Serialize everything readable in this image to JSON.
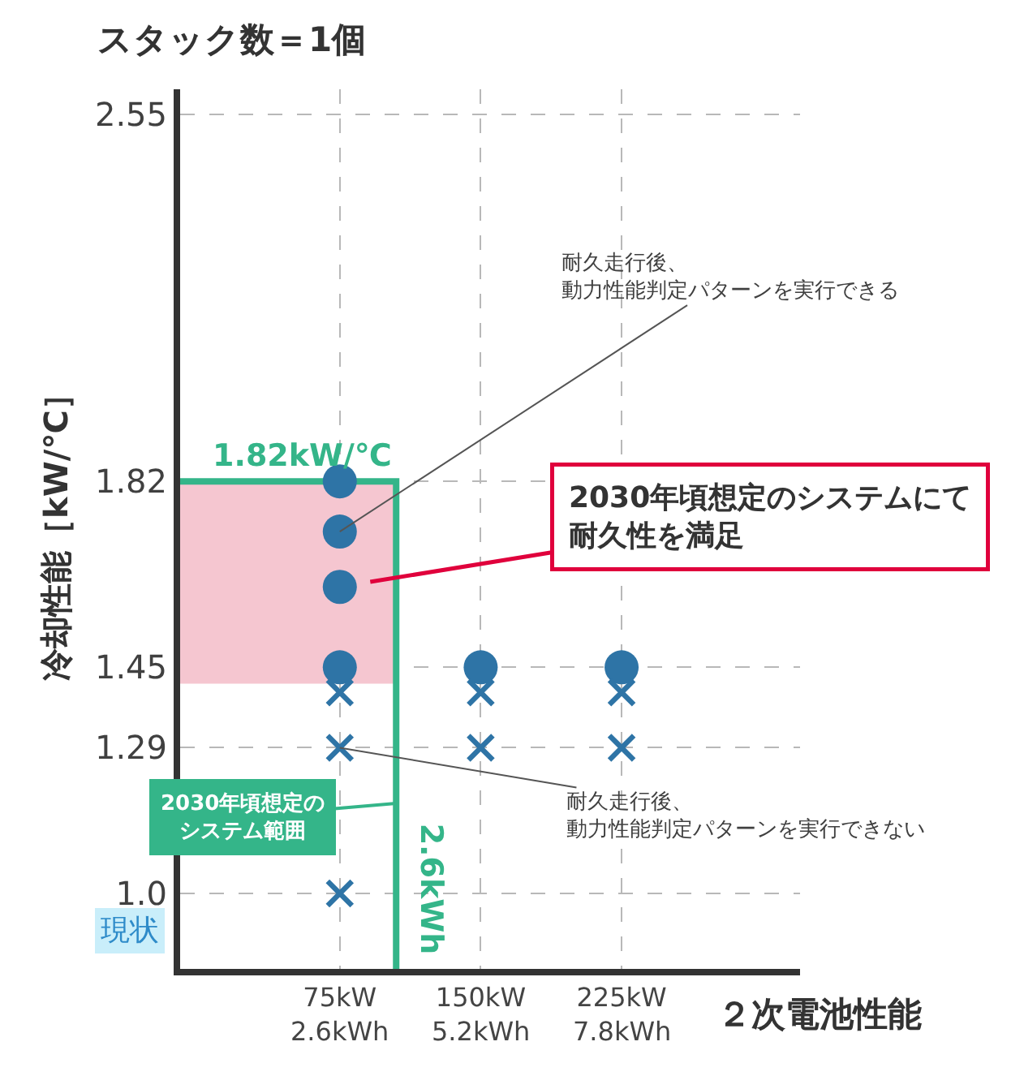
{
  "chart_data": {
    "type": "scatter",
    "title": "スタック数＝1個",
    "xlabel": "２次電池性能",
    "ylabel": "冷却性能［kW/℃］",
    "xlim": [
      -10,
      320
    ],
    "xticks": [
      {
        "value": 75,
        "label": "75kW"
      },
      {
        "value": 150,
        "label": "150kW"
      },
      {
        "value": 225,
        "label": "225kW"
      }
    ],
    "ylim": [
      0.85,
      2.6
    ],
    "yticks": [
      {
        "value": 1,
        "label": "1.0"
      },
      1.29,
      1.45,
      1.82,
      2.55
    ],
    "grid": true,
    "series": [
      {
        "type": "line",
        "color": "#f5c6d0",
        "x": [
          -10,
          105
        ],
        "values": [
          1.42,
          1.42
        ],
        "lower": [
          1.42,
          1.42
        ],
        "upper": [
          1.82,
          1.82
        ]
      },
      {
        "type": "line",
        "color": "#34b589",
        "x": [
          -10,
          105,
          105
        ],
        "values": [
          1.82,
          1.82,
          0.85
        ]
      },
      {
        "marker": "circle",
        "color": "#2e74a6",
        "x": [
          75,
          75,
          75,
          75,
          150,
          225
        ],
        "values": [
          1.82,
          1.72,
          1.61,
          1.45,
          1.45,
          1.45
        ]
      },
      {
        "marker": "cross",
        "color": "#2e74a6",
        "x": [
          75,
          75,
          75,
          150,
          150,
          225,
          225
        ],
        "values": [
          1.4,
          1.29,
          1.0,
          1.4,
          1.29,
          1.4,
          1.29
        ]
      }
    ],
    "annotations": [
      {
        "text": "1.82kW/℃",
        "x": 55,
        "y": 1.82
      },
      {
        "text": "2.6kWh",
        "x": 105,
        "y": 1.01
      },
      "2030年頃想定のシステム範囲",
      "2030年頃想定のシステムにて耐久性を満足",
      {
        "text": "耐久走行後、動力性能判定パターンを実行できる",
        "x": 75,
        "y": 1.72
      },
      {
        "text": "耐久走行後、動力性能判定パターンを実行できない",
        "x": 75,
        "y": 1.29
      },
      "現状",
      "2.6kWh",
      "5.2kWh",
      "7.8kWh"
    ]
  }
}
